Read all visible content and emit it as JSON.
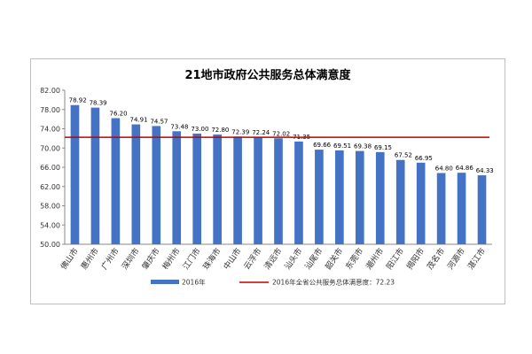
{
  "chart_data": {
    "type": "bar",
    "title": "21地市政府公共服务总体满意度",
    "categories": [
      "佛山市",
      "惠州市",
      "广州市",
      "深圳市",
      "肇庆市",
      "梅州市",
      "江门市",
      "珠海市",
      "中山市",
      "云浮市",
      "清远市",
      "汕头市",
      "汕尾市",
      "韶关市",
      "东莞市",
      "潮州市",
      "阳江市",
      "揭阳市",
      "茂名市",
      "河源市",
      "湛江市"
    ],
    "series": [
      {
        "name": "2016年",
        "color": "#4472c4",
        "values": [
          78.92,
          78.39,
          76.2,
          74.91,
          74.57,
          73.48,
          73.0,
          72.8,
          72.39,
          72.24,
          72.02,
          71.35,
          69.66,
          69.51,
          69.38,
          69.15,
          67.52,
          66.95,
          64.8,
          64.86,
          64.33
        ]
      }
    ],
    "data_labels": [
      "78.92",
      "78.39",
      "76.20",
      "74.91",
      "74.57",
      "73.48",
      "73.00",
      "72.80",
      "72.39",
      "72.24",
      "72.02",
      "71.35",
      "69.66",
      "69.51",
      "69.38",
      "69.15",
      "67.52",
      "66.95",
      "64.80",
      "64.86",
      "64.33"
    ],
    "reference_line": {
      "name": "2016年全省公共服务总体满意度：72.23",
      "value": 72.23,
      "color": "#c00000"
    },
    "y_ticks": [
      "50.00",
      "54.00",
      "58.00",
      "62.00",
      "66.00",
      "70.00",
      "74.00",
      "78.00",
      "82.00"
    ],
    "ylim": [
      50,
      82
    ],
    "xlabel": "",
    "ylabel": "",
    "grid": false,
    "legend_position": "bottom"
  }
}
